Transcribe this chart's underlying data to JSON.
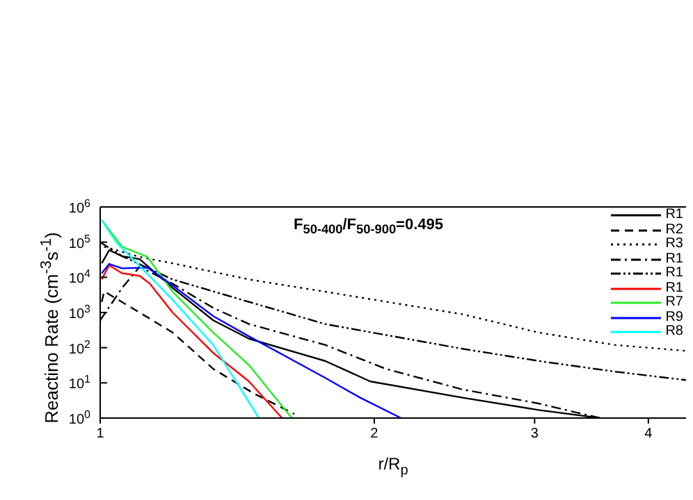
{
  "chart_data": {
    "type": "line",
    "xlabel": "r/R$_{p}$",
    "ylabel": "Reactino Rate (cm$^{-3}$s$^{-1}$)",
    "annotations": [
      "F$_{50-400}$/F$_{50-900}$=0.495"
    ],
    "log": "xy",
    "xlim": [
      1,
      4.4
    ],
    "xticks": [
      1,
      2,
      3,
      4
    ],
    "ylim": [
      1,
      1000000
    ],
    "yticks": [
      {
        "value": 1,
        "label": "10$^{0}$"
      },
      {
        "value": 10,
        "label": "10$^{1}$"
      },
      {
        "value": 100,
        "label": "10$^{2}$"
      },
      {
        "value": 1000,
        "label": "10$^{3}$"
      },
      {
        "value": 10000,
        "label": "10$^{4}$"
      },
      {
        "value": 100000,
        "label": "10$^{5}$"
      },
      {
        "value": 1000000,
        "label": "10$^{6}$"
      }
    ],
    "grid": false,
    "legend": "top right",
    "marker": "none",
    "series": [
      {
        "name": "R1",
        "color": "#000000",
        "line_style": "solid",
        "x": [
          1.004,
          1.023,
          1.057,
          1.105,
          1.201,
          1.331,
          1.457,
          1.766,
          1.98,
          2.5,
          3.03,
          3.54
        ],
        "values": [
          25000,
          59000,
          40000,
          33000,
          5000,
          600,
          180,
          42,
          11,
          3.8,
          1.7,
          1
        ]
      },
      {
        "name": "R2",
        "color": "#000000",
        "line_style": "dashed",
        "x": [
          1.004,
          1.01,
          1.112,
          1.201,
          1.331,
          1.475,
          1.634
        ],
        "values": [
          2000,
          4000,
          900,
          270,
          25,
          5,
          1.3
        ]
      },
      {
        "name": "R3",
        "color": "#000000",
        "line_style": "dotted",
        "x": [
          1.01,
          1.105,
          1.201,
          1.457,
          1.766,
          2.5,
          3.03,
          3.67,
          4.4
        ],
        "values": [
          74000,
          38000,
          25000,
          8700,
          3900,
          890,
          270,
          120,
          81
        ]
      },
      {
        "name": "R1",
        "color": "#000000",
        "line_style": "dashdot",
        "x": [
          1.0,
          1.057,
          1.105,
          1.201,
          1.331,
          1.457,
          1.766,
          2.06,
          2.5,
          3.03,
          3.54
        ],
        "values": [
          600,
          5000,
          20000,
          6600,
          1350,
          470,
          120,
          25,
          6.5,
          2.6,
          1
        ]
      },
      {
        "name": "R1",
        "color": "#000000",
        "line_style": "dashdotdot",
        "x": [
          1.0,
          1.057,
          1.201,
          1.457,
          1.766,
          2.5,
          3.03,
          3.67,
          4.4
        ],
        "values": [
          100000,
          40000,
          8700,
          2000,
          470,
          93,
          42,
          21,
          12
        ]
      },
      {
        "name": "R1",
        "color": "#ff0000",
        "line_style": "solid",
        "x": [
          1.004,
          1.023,
          1.057,
          1.105,
          1.134,
          1.201,
          1.331,
          1.457,
          1.584
        ],
        "values": [
          8700,
          22000,
          13000,
          11000,
          6600,
          1000,
          71,
          11,
          1
        ]
      },
      {
        "name": "R7",
        "color": "#22ee22",
        "line_style": "solid",
        "x": [
          1.004,
          1.057,
          1.127,
          1.201,
          1.331,
          1.457,
          1.624
        ],
        "values": [
          420000,
          74000,
          38000,
          3900,
          270,
          32,
          1
        ]
      },
      {
        "name": "R9",
        "color": "#0000ff",
        "line_style": "solid",
        "x": [
          1.004,
          1.023,
          1.057,
          1.127,
          1.201,
          1.331,
          1.457,
          1.766,
          1.93,
          2.14
        ],
        "values": [
          13000,
          24000,
          18000,
          19000,
          5900,
          790,
          210,
          14,
          3.8,
          1
        ]
      },
      {
        "name": "R8",
        "color": "#00ffff",
        "line_style": "solid",
        "x": [
          1.004,
          1.043,
          1.098,
          1.201,
          1.331,
          1.494
        ],
        "values": [
          420000,
          95000,
          25000,
          2300,
          120,
          1
        ]
      }
    ]
  }
}
